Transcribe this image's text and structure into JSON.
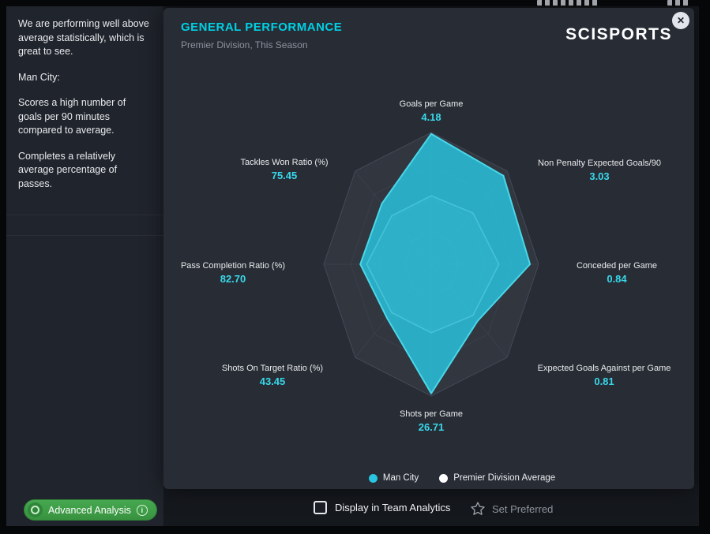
{
  "window": {
    "close_label": "✕"
  },
  "sidebar": {
    "paragraphs": [
      "We are performing well above average statistically, which is great to see.",
      "Man City:",
      "Scores a high number of goals per 90 minutes compared to average.",
      "Completes a relatively average percentage of passes."
    ]
  },
  "header": {
    "title": "GENERAL PERFORMANCE",
    "subtitle": "Premier Division, This Season",
    "brand": "SCISPORTS"
  },
  "chart_data": {
    "type": "radar",
    "title": "General Performance — Man City vs Premier Division Average",
    "axes": [
      {
        "label": "Goals per Game",
        "value": "4.18"
      },
      {
        "label": "Non Penalty Expected Goals/90",
        "value": "3.03"
      },
      {
        "label": "Conceded per Game",
        "value": "0.84"
      },
      {
        "label": "Expected Goals Against per Game",
        "value": "0.81"
      },
      {
        "label": "Shots per Game",
        "value": "26.71"
      },
      {
        "label": "Shots On Target Ratio (%)",
        "value": "43.45"
      },
      {
        "label": "Pass Completion Ratio (%)",
        "value": "82.70"
      },
      {
        "label": "Tackles Won Ratio (%)",
        "value": "75.45"
      }
    ],
    "series": [
      {
        "name": "Man City",
        "color": "#2ac5e0",
        "fractions": [
          0.99,
          0.95,
          0.92,
          0.61,
          0.98,
          0.58,
          0.66,
          0.65
        ]
      },
      {
        "name": "Premier Division Average",
        "color": "#ffffff",
        "fractions": [
          0.52,
          0.55,
          0.63,
          0.55,
          0.52,
          0.52,
          0.6,
          0.52
        ]
      }
    ],
    "legend": [
      {
        "label": "Man City",
        "color": "#2ac5e0"
      },
      {
        "label": "Premier Division Average",
        "color": "#ffffff"
      }
    ],
    "grid": "concentric-octagons",
    "legend_position": "bottom-center"
  },
  "footer": {
    "advanced_analysis": "Advanced Analysis",
    "info_glyph": "i",
    "display_checkbox_label": "Display in Team Analytics",
    "set_preferred": "Set Preferred"
  }
}
